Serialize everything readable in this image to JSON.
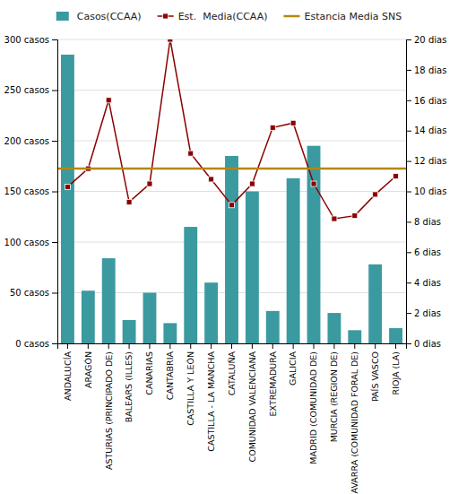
{
  "chart_data": {
    "type": "bar",
    "categories": [
      "ANDALUCÍA",
      "ARAGÓN",
      "ASTURIAS (PRINCIPADO DE)",
      "BALEARS (ILLES)",
      "CANARIAS",
      "CANTABRIA",
      "CASTILLA Y LEÓN",
      "CASTILLA - LA MANCHA",
      "CATALUÑA",
      "COMUNIDAD VALENCIANA",
      "EXTREMADURA",
      "GALICIA",
      "MADRID (COMUNIDAD DE)",
      "MURCIA (REGION DE)",
      "NAVARRA (COMUNIDAD FORAL DE)",
      "PAÍS VASCO",
      "RIOJA (LA)"
    ],
    "series": [
      {
        "name": "Casos(CCAA)",
        "type": "bar",
        "color": "#3a9aa0",
        "values": [
          285,
          52,
          84,
          23,
          50,
          20,
          115,
          60,
          185,
          150,
          32,
          163,
          195,
          30,
          13,
          78,
          15
        ]
      },
      {
        "name": "Est.  Media(CCAA)",
        "type": "line",
        "color": "#8B0000",
        "marker": "square",
        "axis": "y2",
        "values": [
          10.3,
          11.5,
          16.0,
          9.3,
          10.5,
          20.0,
          12.5,
          10.8,
          9.1,
          10.5,
          14.2,
          14.5,
          10.5,
          8.2,
          8.4,
          9.8,
          11.0
        ]
      },
      {
        "name": "Estancia Media SNS",
        "type": "hline",
        "color": "#B8860B",
        "axis": "y2",
        "value": 11.5
      }
    ],
    "ylim": [
      0,
      300
    ],
    "yticks": [
      {
        "value": 0,
        "label": "0 casos"
      },
      {
        "value": 50,
        "label": "50 casos"
      },
      {
        "value": 100,
        "label": "100 casos"
      },
      {
        "value": 150,
        "label": "150 casos"
      },
      {
        "value": 200,
        "label": "200 casos"
      },
      {
        "value": 250,
        "label": "250 casos"
      },
      {
        "value": 300,
        "label": "300 casos"
      }
    ],
    "y2lim": [
      0,
      20
    ],
    "y2ticks": [
      {
        "value": 0,
        "label": "0 dias"
      },
      {
        "value": 2,
        "label": "2 dias"
      },
      {
        "value": 4,
        "label": "4 dias"
      },
      {
        "value": 6,
        "label": "6 dias"
      },
      {
        "value": 8,
        "label": "8 dias"
      },
      {
        "value": 10,
        "label": "10 dias"
      },
      {
        "value": 12,
        "label": "12 dias"
      },
      {
        "value": 14,
        "label": "14 dias"
      },
      {
        "value": 16,
        "label": "16 dias"
      },
      {
        "value": 18,
        "label": "18 dias"
      },
      {
        "value": 20,
        "label": "20 dias"
      }
    ],
    "grid": true,
    "legend": "top"
  }
}
